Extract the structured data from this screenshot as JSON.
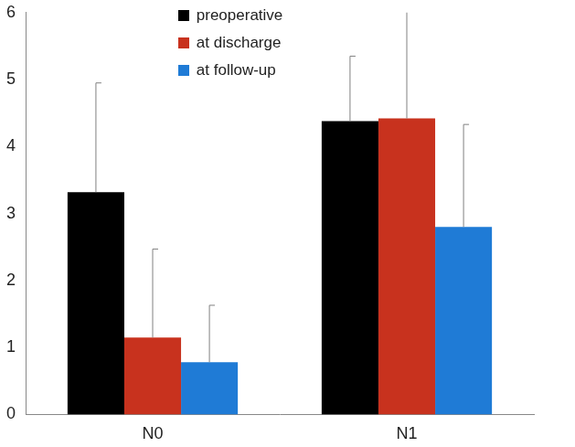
{
  "chart_data": {
    "type": "bar",
    "categories": [
      "N0",
      "N1"
    ],
    "series": [
      {
        "name": "preoperative",
        "color": "#000000",
        "values": [
          3.32,
          4.38
        ],
        "errors": [
          1.63,
          0.97
        ]
      },
      {
        "name": "at discharge",
        "color": "#c8321e",
        "values": [
          1.15,
          4.42
        ],
        "errors": [
          1.32,
          1.9
        ]
      },
      {
        "name": "at follow-up",
        "color": "#1f7bd6",
        "values": [
          0.78,
          2.8
        ],
        "errors": [
          0.85,
          1.53
        ]
      }
    ],
    "ylim": [
      0,
      6
    ],
    "yticks": [
      0,
      1,
      2,
      3,
      4,
      5,
      6
    ],
    "grid": false,
    "legend": "top"
  }
}
